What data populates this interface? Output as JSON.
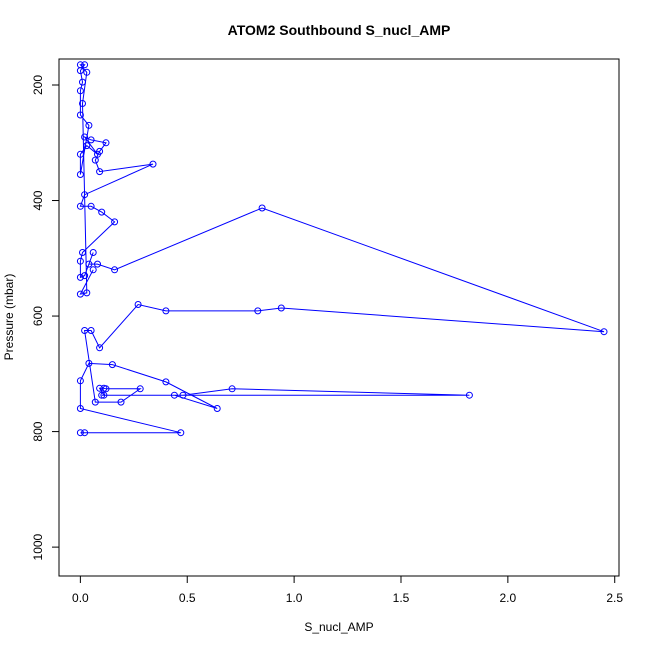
{
  "chart_data": {
    "type": "scatter",
    "title": "ATOM2 Southbound S_nucl_AMP",
    "xlabel": "S_nucl_AMP",
    "ylabel": "Pressure (mbar)",
    "xlim": [
      -0.1,
      2.52
    ],
    "ylim": [
      1050,
      155
    ],
    "y_reversed": true,
    "x_ticks": [
      0.0,
      0.5,
      1.0,
      1.5,
      2.0,
      2.5
    ],
    "x_tick_labels": [
      "0.0",
      "0.5",
      "1.0",
      "1.5",
      "2.0",
      "2.5"
    ],
    "y_ticks": [
      200,
      400,
      600,
      800,
      1000
    ],
    "y_tick_labels": [
      "200",
      "400",
      "600",
      "800",
      "1000"
    ],
    "grid": false,
    "legend": "none",
    "series": [
      {
        "color": "#0000ff",
        "points": [
          [
            0.0,
            802
          ],
          [
            0.02,
            802
          ],
          [
            0.47,
            802
          ],
          [
            0.0,
            760
          ],
          [
            0.0,
            712
          ],
          [
            0.04,
            682
          ],
          [
            0.15,
            684
          ],
          [
            0.4,
            714
          ],
          [
            0.64,
            760
          ],
          [
            0.44,
            737
          ],
          [
            0.48,
            737
          ],
          [
            0.71,
            726
          ],
          [
            1.82,
            737
          ],
          [
            0.1,
            737
          ],
          [
            0.11,
            737
          ],
          [
            0.09,
            725
          ],
          [
            0.11,
            725
          ],
          [
            0.12,
            726
          ],
          [
            0.28,
            726
          ],
          [
            0.19,
            749
          ],
          [
            0.07,
            749
          ],
          [
            0.02,
            625
          ],
          [
            0.05,
            625
          ],
          [
            0.09,
            655
          ],
          [
            0.27,
            580
          ],
          [
            0.4,
            591
          ],
          [
            0.83,
            591
          ],
          [
            0.94,
            586
          ],
          [
            2.45,
            627
          ],
          [
            0.85,
            413
          ],
          [
            0.16,
            520
          ],
          [
            0.08,
            510
          ],
          [
            0.04,
            510
          ],
          [
            0.06,
            490
          ],
          [
            0.02,
            530
          ],
          [
            0.0,
            533
          ],
          [
            0.0,
            505
          ],
          [
            0.01,
            490
          ],
          [
            0.16,
            437
          ],
          [
            0.1,
            420
          ],
          [
            0.05,
            410
          ],
          [
            0.0,
            410
          ],
          [
            0.02,
            390
          ],
          [
            0.34,
            337
          ],
          [
            0.09,
            350
          ],
          [
            0.07,
            330
          ],
          [
            0.09,
            315
          ],
          [
            0.12,
            300
          ],
          [
            0.05,
            295
          ],
          [
            0.02,
            290
          ],
          [
            0.08,
            320
          ],
          [
            0.03,
            305
          ],
          [
            0.0,
            320
          ],
          [
            0.0,
            355
          ],
          [
            0.04,
            270
          ],
          [
            0.0,
            252
          ],
          [
            0.0,
            210
          ],
          [
            0.01,
            195
          ],
          [
            0.0,
            175
          ],
          [
            0.02,
            165
          ],
          [
            0.0,
            165
          ],
          [
            0.03,
            178
          ],
          [
            0.01,
            232
          ],
          [
            0.03,
            560
          ],
          [
            0.0,
            562
          ],
          [
            0.06,
            520
          ]
        ]
      }
    ]
  }
}
